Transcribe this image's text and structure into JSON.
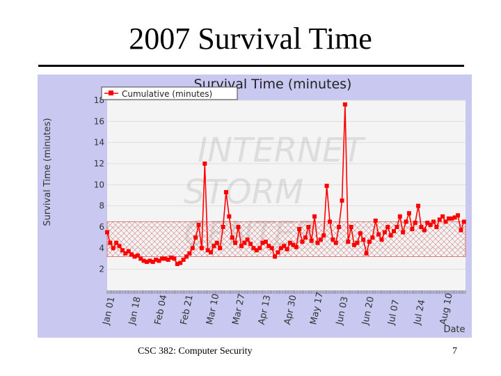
{
  "slide": {
    "title": "2007 Survival Time",
    "footer_left": "CSC 382: Computer Security",
    "page_number": "7"
  },
  "colors": {
    "panel_bg": "#c8c8f0",
    "plot_bg": "#f4f4f4",
    "series": "#ff0000",
    "band": "#e07070"
  },
  "chart_data": {
    "type": "line",
    "title": "Survival Time (minutes)",
    "ylabel": "Survival Time (minutes)",
    "xlabel": "Date",
    "ylim": [
      0,
      18
    ],
    "yticks": [
      2,
      4,
      6,
      8,
      10,
      12,
      14,
      16,
      18
    ],
    "xlim": [
      "2007-01-01",
      "2007-08-24"
    ],
    "xticks": [
      "Jan 01",
      "Jan 18",
      "Feb 04",
      "Feb 21",
      "Mar 10",
      "Mar 27",
      "Apr 13",
      "Apr 30",
      "May 17",
      "Jun 03",
      "Jun 20",
      "Jul 07",
      "Jul 24",
      "Aug 10"
    ],
    "legend": {
      "entries": [
        "Cumulative (minutes)"
      ],
      "position": "top-left"
    },
    "grid": true,
    "band": {
      "low": 3.2,
      "high": 6.5
    },
    "series": [
      {
        "name": "Cumulative (minutes)",
        "x": [
          "2007-01-01",
          "2007-01-03",
          "2007-01-05",
          "2007-01-07",
          "2007-01-09",
          "2007-01-11",
          "2007-01-13",
          "2007-01-15",
          "2007-01-17",
          "2007-01-19",
          "2007-01-21",
          "2007-01-23",
          "2007-01-25",
          "2007-01-27",
          "2007-01-29",
          "2007-01-31",
          "2007-02-02",
          "2007-02-04",
          "2007-02-06",
          "2007-02-08",
          "2007-02-10",
          "2007-02-12",
          "2007-02-14",
          "2007-02-16",
          "2007-02-18",
          "2007-02-20",
          "2007-02-22",
          "2007-02-24",
          "2007-02-26",
          "2007-02-28",
          "2007-03-02",
          "2007-03-04",
          "2007-03-06",
          "2007-03-08",
          "2007-03-10",
          "2007-03-12",
          "2007-03-14",
          "2007-03-16",
          "2007-03-18",
          "2007-03-20",
          "2007-03-22",
          "2007-03-24",
          "2007-03-26",
          "2007-03-28",
          "2007-03-30",
          "2007-04-01",
          "2007-04-03",
          "2007-04-05",
          "2007-04-07",
          "2007-04-09",
          "2007-04-11",
          "2007-04-13",
          "2007-04-15",
          "2007-04-17",
          "2007-04-19",
          "2007-04-21",
          "2007-04-23",
          "2007-04-25",
          "2007-04-27",
          "2007-04-29",
          "2007-05-01",
          "2007-05-03",
          "2007-05-05",
          "2007-05-07",
          "2007-05-09",
          "2007-05-11",
          "2007-05-13",
          "2007-05-15",
          "2007-05-17",
          "2007-05-19",
          "2007-05-21",
          "2007-05-23",
          "2007-05-25",
          "2007-05-27",
          "2007-05-29",
          "2007-05-31",
          "2007-06-02",
          "2007-06-04",
          "2007-06-06",
          "2007-06-08",
          "2007-06-10",
          "2007-06-12",
          "2007-06-14",
          "2007-06-16",
          "2007-06-18",
          "2007-06-20",
          "2007-06-22",
          "2007-06-24",
          "2007-06-26",
          "2007-06-28",
          "2007-06-30",
          "2007-07-02",
          "2007-07-04",
          "2007-07-06",
          "2007-07-08",
          "2007-07-10",
          "2007-07-12",
          "2007-07-14",
          "2007-07-16",
          "2007-07-18",
          "2007-07-20",
          "2007-07-22",
          "2007-07-24",
          "2007-07-26",
          "2007-07-28",
          "2007-07-30",
          "2007-08-01",
          "2007-08-03",
          "2007-08-05",
          "2007-08-07",
          "2007-08-09",
          "2007-08-11",
          "2007-08-13",
          "2007-08-15",
          "2007-08-17",
          "2007-08-19",
          "2007-08-21",
          "2007-08-23"
        ],
        "values": [
          5.5,
          4.5,
          4.0,
          4.5,
          4.2,
          3.8,
          3.5,
          3.7,
          3.4,
          3.2,
          3.3,
          3.0,
          2.8,
          2.7,
          2.8,
          2.7,
          2.9,
          2.8,
          3.0,
          3.0,
          2.9,
          3.1,
          3.0,
          2.5,
          2.6,
          2.9,
          3.2,
          3.5,
          4.0,
          5.0,
          6.2,
          4.0,
          12.0,
          3.8,
          3.6,
          4.2,
          4.5,
          4.0,
          6.0,
          9.3,
          7.0,
          5.0,
          4.5,
          6.0,
          4.2,
          4.5,
          4.8,
          4.4,
          4.0,
          3.8,
          4.0,
          4.5,
          4.6,
          4.2,
          4.0,
          3.2,
          3.6,
          4.0,
          4.2,
          3.9,
          4.5,
          4.3,
          4.1,
          5.8,
          4.6,
          5.0,
          6.0,
          4.7,
          7.0,
          4.5,
          4.8,
          5.2,
          9.9,
          6.5,
          4.8,
          4.5,
          6.0,
          8.5,
          17.6,
          4.6,
          6.0,
          4.3,
          4.5,
          5.4,
          4.8,
          3.5,
          4.6,
          5.0,
          6.6,
          5.3,
          4.8,
          5.5,
          6.0,
          5.2,
          5.6,
          6.0,
          7.0,
          5.5,
          6.5,
          7.3,
          5.8,
          6.4,
          8.0,
          6.0,
          5.7,
          6.4,
          6.2,
          6.5,
          6.0,
          6.7,
          7.0,
          6.5,
          6.8,
          6.8,
          6.9,
          7.1,
          5.7,
          6.5
        ]
      }
    ]
  }
}
